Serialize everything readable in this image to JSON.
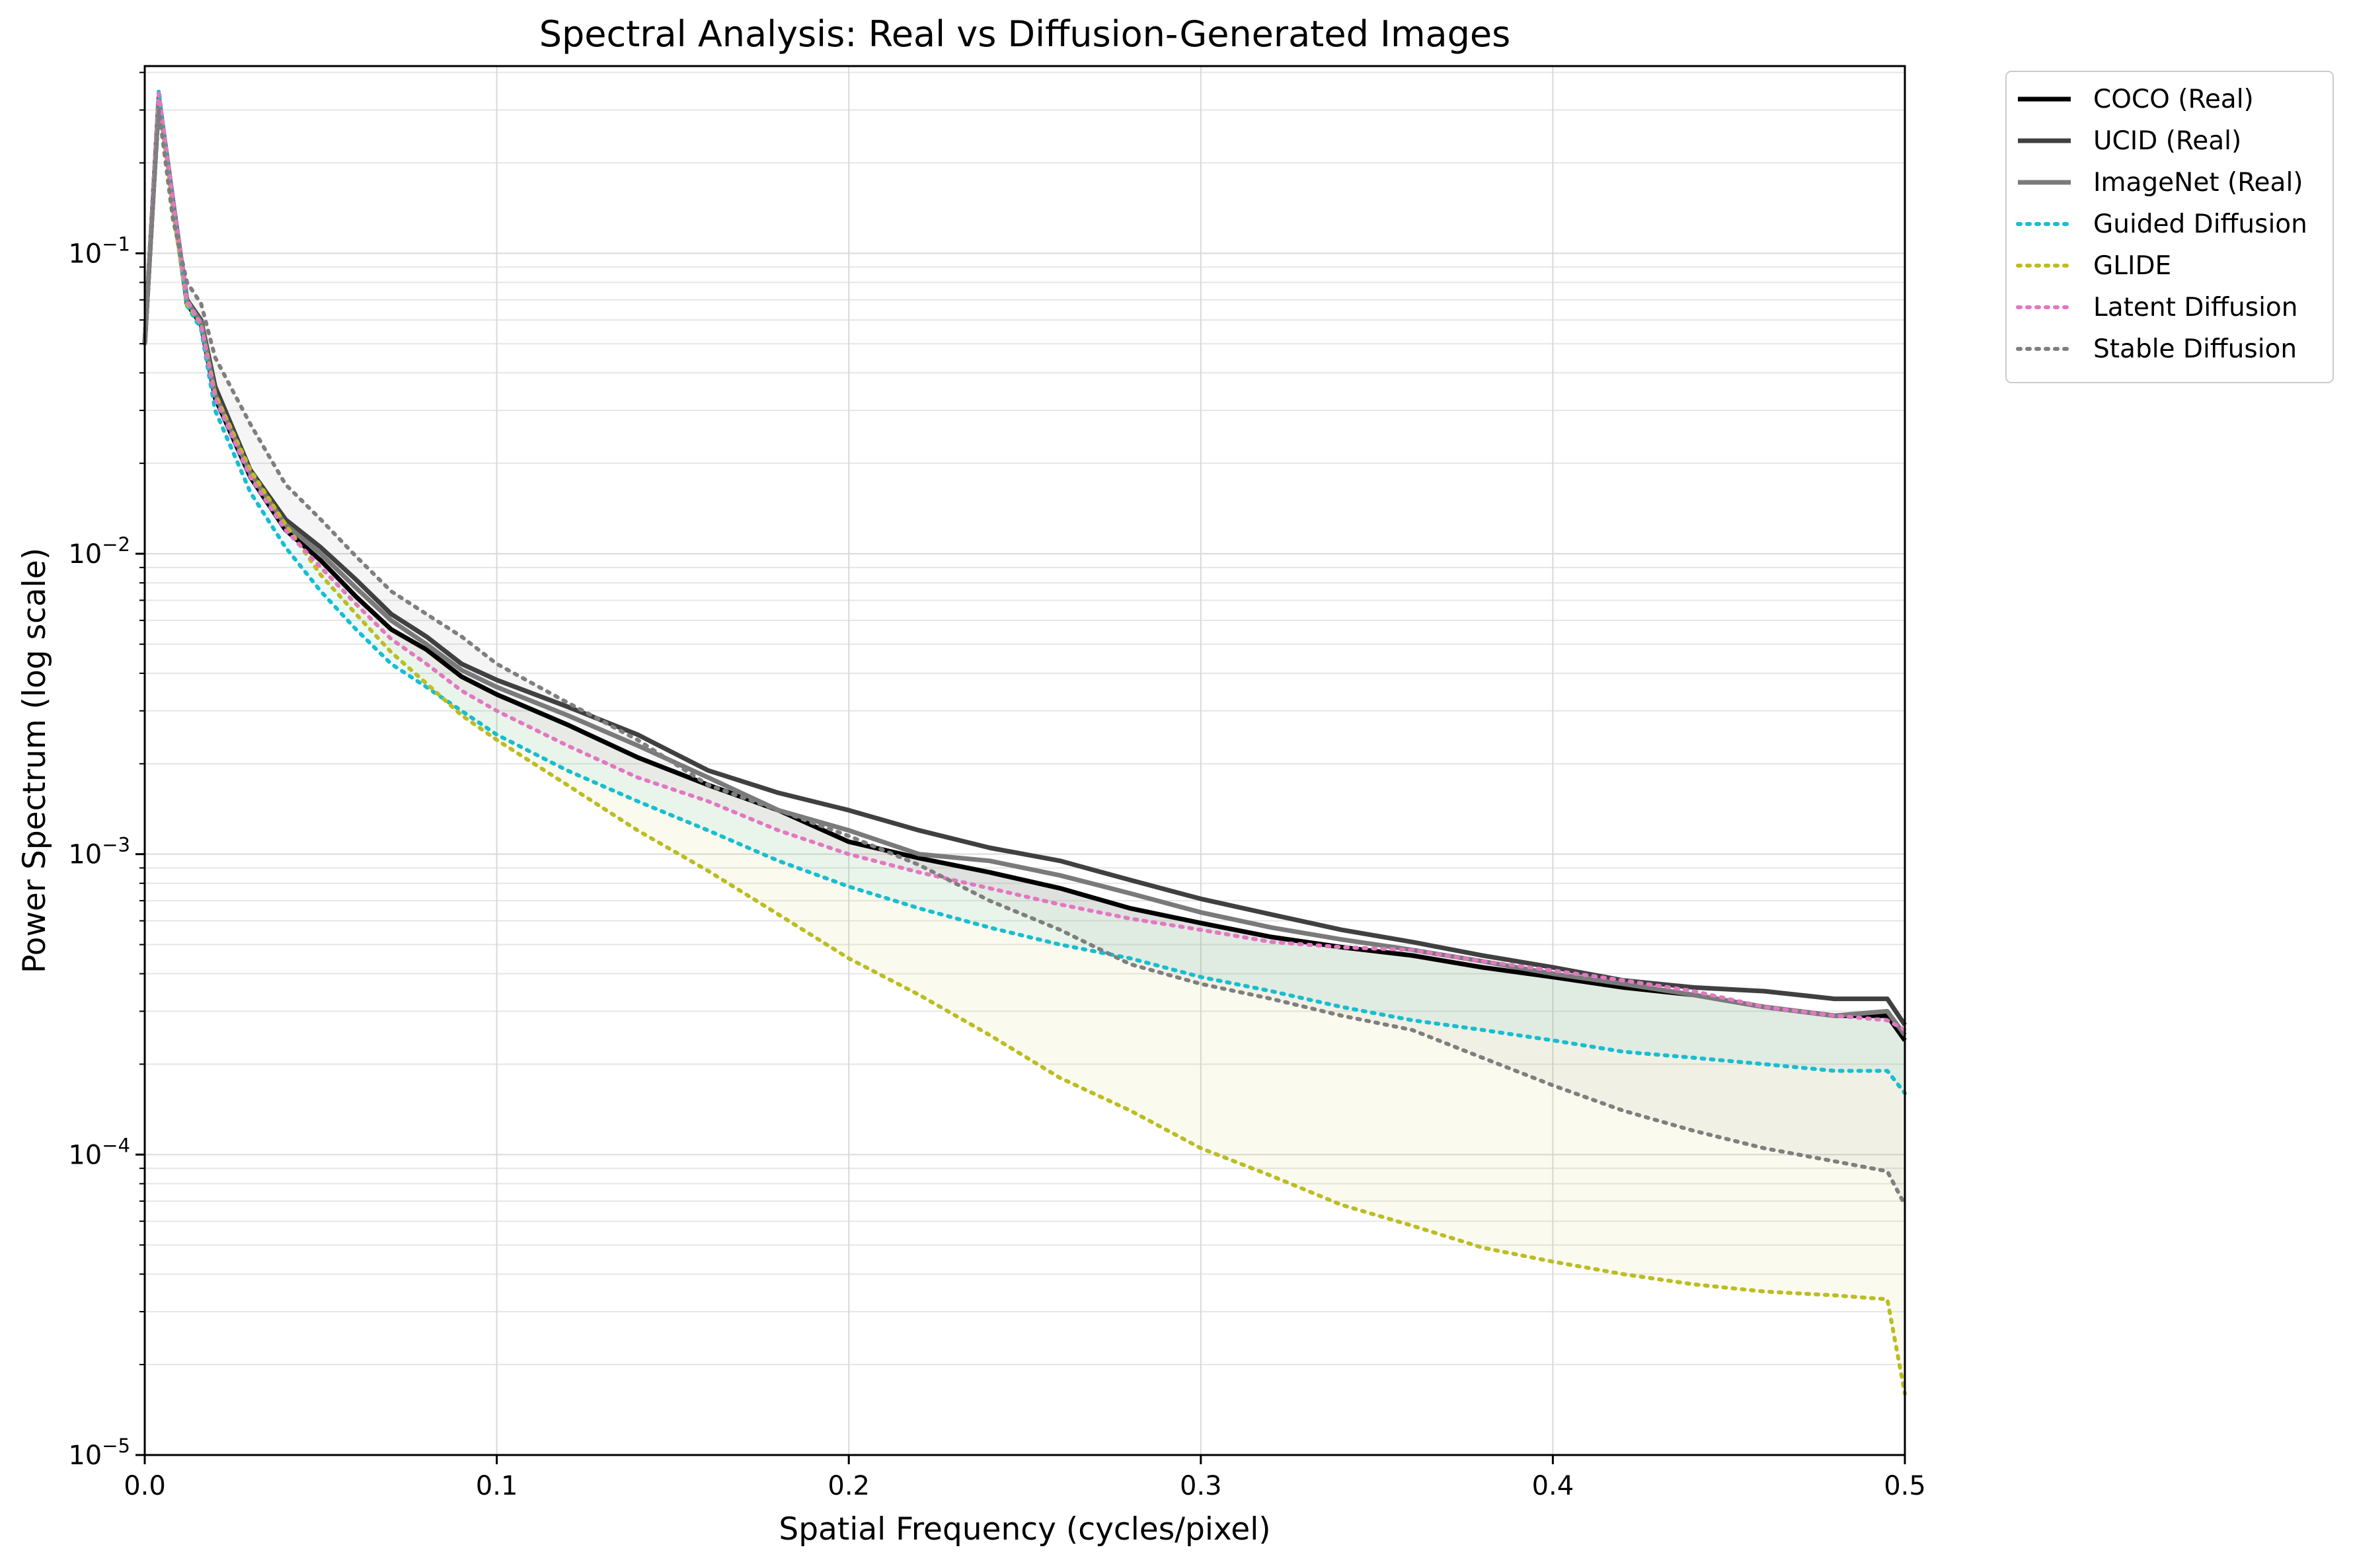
{
  "chart_data": {
    "type": "line",
    "title": "Spectral Analysis: Real vs Diffusion-Generated Images",
    "xlabel": "Spatial Frequency (cycles/pixel)",
    "ylabel": "Power Spectrum (log scale)",
    "xlim": [
      0.0,
      0.5
    ],
    "ylim": [
      1e-05,
      0.42
    ],
    "yscale": "log",
    "grid": true,
    "legend_position": "outside-top-right",
    "x_ticks": [
      "0.0",
      "0.1",
      "0.2",
      "0.3",
      "0.4",
      "0.5"
    ],
    "y_ticks": [
      {
        "base": "10",
        "exp": "−5"
      },
      {
        "base": "10",
        "exp": "−4"
      },
      {
        "base": "10",
        "exp": "−3"
      },
      {
        "base": "10",
        "exp": "−2"
      },
      {
        "base": "10",
        "exp": "−1"
      }
    ],
    "series": [
      {
        "name": "COCO (Real)",
        "color": "#000000",
        "style": "solid",
        "points": [
          [
            0.0,
            0.05
          ],
          [
            0.004,
            0.33
          ],
          [
            0.008,
            0.15
          ],
          [
            0.012,
            0.068
          ],
          [
            0.016,
            0.058
          ],
          [
            0.02,
            0.033
          ],
          [
            0.03,
            0.018
          ],
          [
            0.04,
            0.012
          ],
          [
            0.05,
            0.0095
          ],
          [
            0.06,
            0.0072
          ],
          [
            0.07,
            0.0056
          ],
          [
            0.08,
            0.0048
          ],
          [
            0.09,
            0.0039
          ],
          [
            0.1,
            0.0034
          ],
          [
            0.12,
            0.0027
          ],
          [
            0.14,
            0.0021
          ],
          [
            0.16,
            0.0017
          ],
          [
            0.18,
            0.0014
          ],
          [
            0.2,
            0.0011
          ],
          [
            0.22,
            0.00097
          ],
          [
            0.24,
            0.00087
          ],
          [
            0.26,
            0.00077
          ],
          [
            0.28,
            0.00066
          ],
          [
            0.3,
            0.00059
          ],
          [
            0.32,
            0.00053
          ],
          [
            0.34,
            0.00049
          ],
          [
            0.36,
            0.00046
          ],
          [
            0.38,
            0.00042
          ],
          [
            0.4,
            0.00039
          ],
          [
            0.42,
            0.00036
          ],
          [
            0.44,
            0.00034
          ],
          [
            0.46,
            0.00031
          ],
          [
            0.48,
            0.00029
          ],
          [
            0.495,
            0.00029
          ],
          [
            0.5,
            0.00024
          ]
        ]
      },
      {
        "name": "UCID (Real)",
        "color": "#404040",
        "style": "solid",
        "points": [
          [
            0.0,
            0.05
          ],
          [
            0.004,
            0.33
          ],
          [
            0.008,
            0.15
          ],
          [
            0.012,
            0.07
          ],
          [
            0.016,
            0.06
          ],
          [
            0.02,
            0.036
          ],
          [
            0.03,
            0.019
          ],
          [
            0.04,
            0.013
          ],
          [
            0.05,
            0.0105
          ],
          [
            0.06,
            0.0082
          ],
          [
            0.07,
            0.0063
          ],
          [
            0.08,
            0.0053
          ],
          [
            0.09,
            0.0043
          ],
          [
            0.1,
            0.0038
          ],
          [
            0.12,
            0.0031
          ],
          [
            0.14,
            0.0025
          ],
          [
            0.16,
            0.0019
          ],
          [
            0.18,
            0.0016
          ],
          [
            0.2,
            0.0014
          ],
          [
            0.22,
            0.0012
          ],
          [
            0.24,
            0.00105
          ],
          [
            0.26,
            0.00095
          ],
          [
            0.28,
            0.00082
          ],
          [
            0.3,
            0.00071
          ],
          [
            0.32,
            0.00063
          ],
          [
            0.34,
            0.00056
          ],
          [
            0.36,
            0.00051
          ],
          [
            0.38,
            0.00046
          ],
          [
            0.4,
            0.00042
          ],
          [
            0.42,
            0.00038
          ],
          [
            0.44,
            0.00036
          ],
          [
            0.46,
            0.00035
          ],
          [
            0.48,
            0.00033
          ],
          [
            0.495,
            0.00033
          ],
          [
            0.5,
            0.00027
          ]
        ]
      },
      {
        "name": "ImageNet (Real)",
        "color": "#7a7a7a",
        "style": "solid",
        "points": [
          [
            0.0,
            0.05
          ],
          [
            0.004,
            0.33
          ],
          [
            0.008,
            0.15
          ],
          [
            0.012,
            0.069
          ],
          [
            0.016,
            0.059
          ],
          [
            0.02,
            0.034
          ],
          [
            0.03,
            0.0185
          ],
          [
            0.04,
            0.0125
          ],
          [
            0.05,
            0.01
          ],
          [
            0.06,
            0.0077
          ],
          [
            0.07,
            0.006
          ],
          [
            0.08,
            0.005
          ],
          [
            0.09,
            0.0041
          ],
          [
            0.1,
            0.0036
          ],
          [
            0.12,
            0.0029
          ],
          [
            0.14,
            0.0023
          ],
          [
            0.16,
            0.0018
          ],
          [
            0.18,
            0.0014
          ],
          [
            0.2,
            0.0012
          ],
          [
            0.22,
            0.001
          ],
          [
            0.24,
            0.00095
          ],
          [
            0.26,
            0.00085
          ],
          [
            0.28,
            0.00074
          ],
          [
            0.3,
            0.00064
          ],
          [
            0.32,
            0.00057
          ],
          [
            0.34,
            0.00052
          ],
          [
            0.36,
            0.00048
          ],
          [
            0.38,
            0.00044
          ],
          [
            0.4,
            0.0004
          ],
          [
            0.42,
            0.00037
          ],
          [
            0.44,
            0.00034
          ],
          [
            0.46,
            0.00031
          ],
          [
            0.48,
            0.00029
          ],
          [
            0.495,
            0.0003
          ],
          [
            0.5,
            0.00025
          ]
        ]
      },
      {
        "name": "Guided Diffusion",
        "color": "#17becf",
        "style": "dotted",
        "points": [
          [
            0.0,
            0.05
          ],
          [
            0.004,
            0.35
          ],
          [
            0.008,
            0.14
          ],
          [
            0.012,
            0.067
          ],
          [
            0.016,
            0.056
          ],
          [
            0.02,
            0.03
          ],
          [
            0.03,
            0.016
          ],
          [
            0.04,
            0.0105
          ],
          [
            0.05,
            0.0075
          ],
          [
            0.06,
            0.0056
          ],
          [
            0.07,
            0.0043
          ],
          [
            0.08,
            0.0036
          ],
          [
            0.09,
            0.003
          ],
          [
            0.1,
            0.0025
          ],
          [
            0.12,
            0.0019
          ],
          [
            0.14,
            0.0015
          ],
          [
            0.16,
            0.0012
          ],
          [
            0.18,
            0.00095
          ],
          [
            0.2,
            0.00078
          ],
          [
            0.22,
            0.00066
          ],
          [
            0.24,
            0.00057
          ],
          [
            0.26,
            0.0005
          ],
          [
            0.28,
            0.00045
          ],
          [
            0.3,
            0.00039
          ],
          [
            0.32,
            0.00035
          ],
          [
            0.34,
            0.00031
          ],
          [
            0.36,
            0.00028
          ],
          [
            0.38,
            0.00026
          ],
          [
            0.4,
            0.00024
          ],
          [
            0.42,
            0.00022
          ],
          [
            0.44,
            0.00021
          ],
          [
            0.46,
            0.0002
          ],
          [
            0.48,
            0.00019
          ],
          [
            0.495,
            0.00019
          ],
          [
            0.5,
            0.00016
          ]
        ]
      },
      {
        "name": "GLIDE",
        "color": "#bcbd22",
        "style": "dotted",
        "points": [
          [
            0.0,
            0.05
          ],
          [
            0.004,
            0.34
          ],
          [
            0.008,
            0.14
          ],
          [
            0.012,
            0.068
          ],
          [
            0.016,
            0.058
          ],
          [
            0.02,
            0.034
          ],
          [
            0.03,
            0.019
          ],
          [
            0.04,
            0.0125
          ],
          [
            0.05,
            0.0085
          ],
          [
            0.06,
            0.0063
          ],
          [
            0.07,
            0.0047
          ],
          [
            0.08,
            0.0037
          ],
          [
            0.09,
            0.0029
          ],
          [
            0.1,
            0.0024
          ],
          [
            0.12,
            0.0017
          ],
          [
            0.14,
            0.0012
          ],
          [
            0.16,
            0.00088
          ],
          [
            0.18,
            0.00063
          ],
          [
            0.2,
            0.00045
          ],
          [
            0.22,
            0.00034
          ],
          [
            0.24,
            0.00025
          ],
          [
            0.26,
            0.00018
          ],
          [
            0.28,
            0.00014
          ],
          [
            0.3,
            0.000105
          ],
          [
            0.32,
            8.5e-05
          ],
          [
            0.34,
            6.8e-05
          ],
          [
            0.36,
            5.8e-05
          ],
          [
            0.38,
            4.9e-05
          ],
          [
            0.4,
            4.4e-05
          ],
          [
            0.42,
            4e-05
          ],
          [
            0.44,
            3.7e-05
          ],
          [
            0.46,
            3.5e-05
          ],
          [
            0.48,
            3.4e-05
          ],
          [
            0.495,
            3.3e-05
          ],
          [
            0.5,
            1.6e-05
          ]
        ]
      },
      {
        "name": "Latent Diffusion",
        "color": "#e377c2",
        "style": "dotted",
        "points": [
          [
            0.0,
            0.05
          ],
          [
            0.004,
            0.34
          ],
          [
            0.008,
            0.15
          ],
          [
            0.012,
            0.07
          ],
          [
            0.016,
            0.058
          ],
          [
            0.02,
            0.033
          ],
          [
            0.03,
            0.018
          ],
          [
            0.04,
            0.012
          ],
          [
            0.05,
            0.009
          ],
          [
            0.06,
            0.0068
          ],
          [
            0.07,
            0.0052
          ],
          [
            0.08,
            0.0043
          ],
          [
            0.09,
            0.0035
          ],
          [
            0.1,
            0.003
          ],
          [
            0.12,
            0.0023
          ],
          [
            0.14,
            0.0018
          ],
          [
            0.16,
            0.0015
          ],
          [
            0.18,
            0.0012
          ],
          [
            0.2,
            0.001
          ],
          [
            0.22,
            0.00087
          ],
          [
            0.24,
            0.00077
          ],
          [
            0.26,
            0.00068
          ],
          [
            0.28,
            0.00061
          ],
          [
            0.3,
            0.00056
          ],
          [
            0.32,
            0.00051
          ],
          [
            0.34,
            0.00049
          ],
          [
            0.36,
            0.00048
          ],
          [
            0.38,
            0.00044
          ],
          [
            0.4,
            0.00041
          ],
          [
            0.42,
            0.00038
          ],
          [
            0.44,
            0.00035
          ],
          [
            0.46,
            0.00031
          ],
          [
            0.48,
            0.00029
          ],
          [
            0.495,
            0.00028
          ],
          [
            0.5,
            0.00026
          ]
        ]
      },
      {
        "name": "Stable Diffusion",
        "color": "#7f7f7f",
        "style": "dotted",
        "points": [
          [
            0.0,
            0.05
          ],
          [
            0.004,
            0.3
          ],
          [
            0.008,
            0.13
          ],
          [
            0.012,
            0.08
          ],
          [
            0.016,
            0.068
          ],
          [
            0.02,
            0.045
          ],
          [
            0.03,
            0.027
          ],
          [
            0.04,
            0.017
          ],
          [
            0.05,
            0.013
          ],
          [
            0.06,
            0.0098
          ],
          [
            0.07,
            0.0075
          ],
          [
            0.08,
            0.0063
          ],
          [
            0.09,
            0.0053
          ],
          [
            0.1,
            0.0043
          ],
          [
            0.12,
            0.0032
          ],
          [
            0.14,
            0.0024
          ],
          [
            0.16,
            0.0017
          ],
          [
            0.18,
            0.0014
          ],
          [
            0.2,
            0.00115
          ],
          [
            0.22,
            0.00092
          ],
          [
            0.24,
            0.0007
          ],
          [
            0.26,
            0.00056
          ],
          [
            0.28,
            0.00043
          ],
          [
            0.3,
            0.00037
          ],
          [
            0.32,
            0.00033
          ],
          [
            0.34,
            0.00029
          ],
          [
            0.36,
            0.00026
          ],
          [
            0.38,
            0.00021
          ],
          [
            0.4,
            0.00017
          ],
          [
            0.42,
            0.00014
          ],
          [
            0.44,
            0.00012
          ],
          [
            0.46,
            0.000105
          ],
          [
            0.48,
            9.5e-05
          ],
          [
            0.495,
            8.8e-05
          ],
          [
            0.5,
            6.8e-05
          ]
        ]
      }
    ]
  }
}
